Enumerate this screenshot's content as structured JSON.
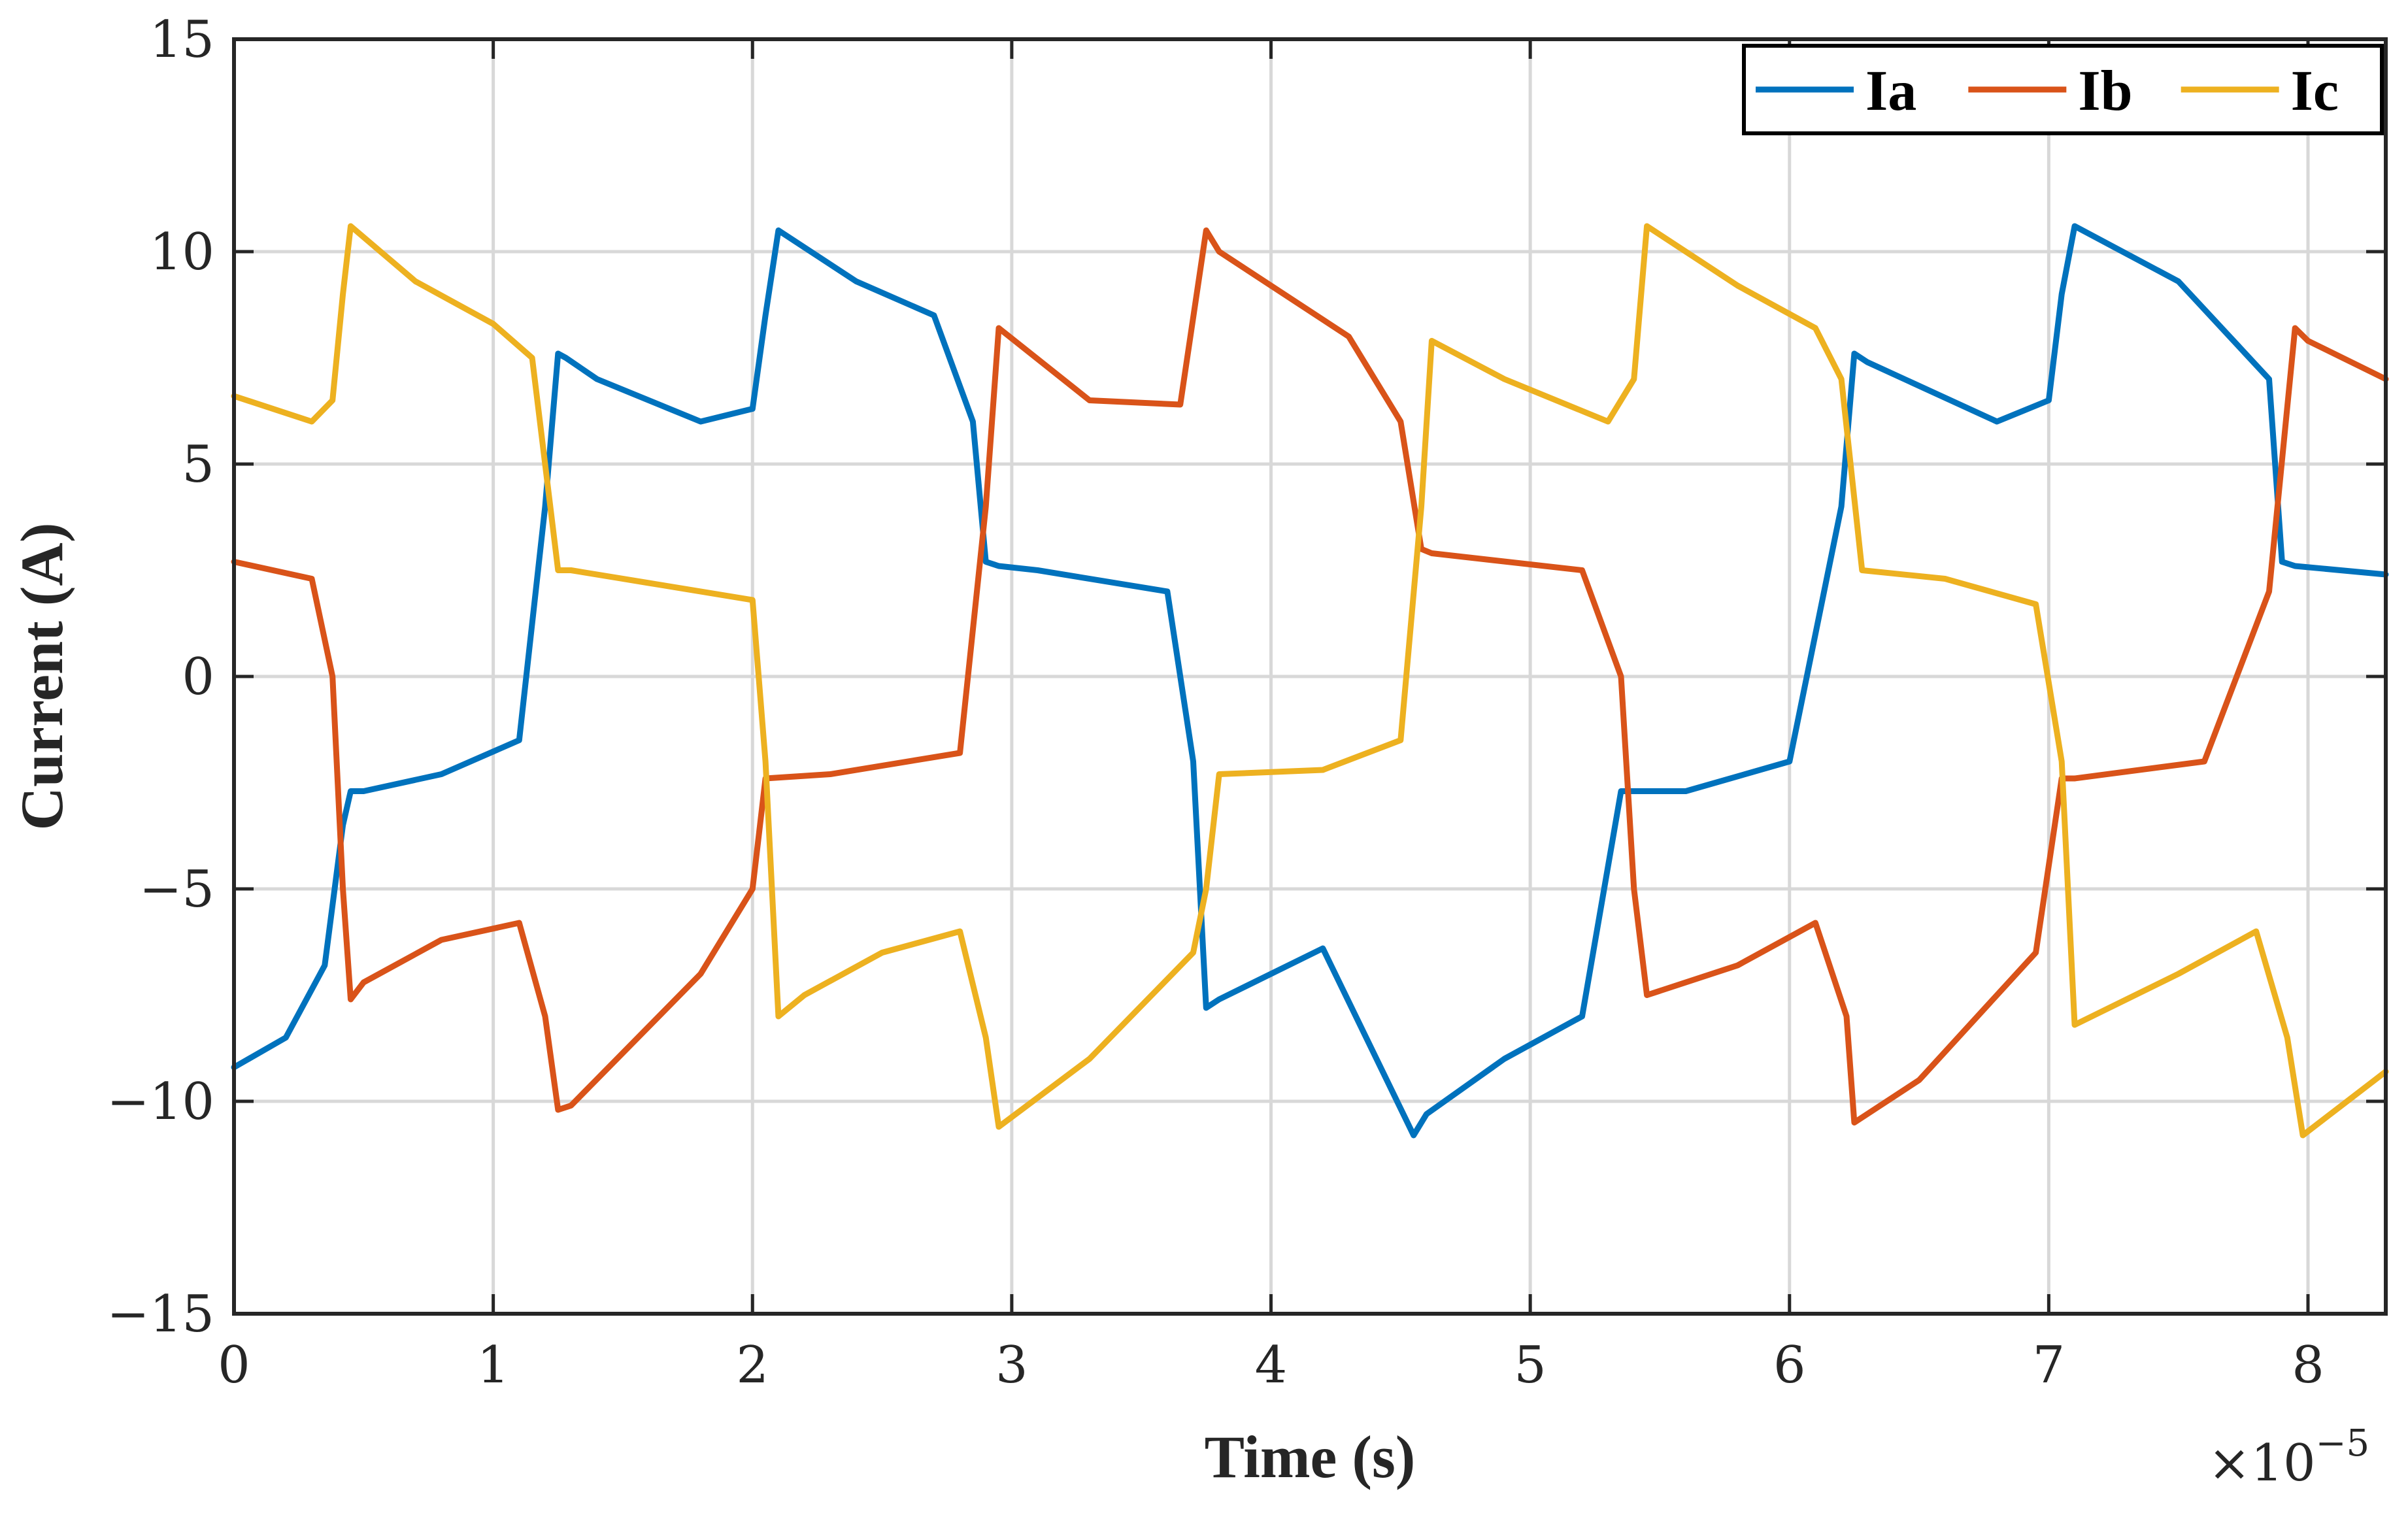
{
  "chart_data": {
    "type": "line",
    "title": "",
    "xlabel": "Time (s)",
    "ylabel": "Current (A)",
    "x_exponent_base": "×10",
    "x_exponent_power": "−5",
    "xlim": [
      0,
      8.3
    ],
    "ylim": [
      -15,
      15
    ],
    "xticks": [
      0,
      1,
      2,
      3,
      4,
      5,
      6,
      7,
      8
    ],
    "xtick_labels": [
      "0",
      "1",
      "2",
      "3",
      "4",
      "5",
      "6",
      "7",
      "8"
    ],
    "yticks": [
      -15,
      -10,
      -5,
      0,
      5,
      10,
      15
    ],
    "ytick_labels": [
      "−15",
      "−10",
      "−5",
      "0",
      "5",
      "10",
      "15"
    ],
    "grid": true,
    "legend_position": "top-right",
    "colors": {
      "Ia": "#0072BD",
      "Ib": "#D95319",
      "Ic": "#EDB120",
      "grid": "#d8d8d8",
      "axes": "#262626"
    },
    "series": [
      {
        "name": "Ia",
        "x": [
          0,
          0.2,
          0.35,
          0.42,
          0.45,
          0.5,
          0.8,
          1.1,
          1.2,
          1.25,
          1.28,
          1.4,
          1.8,
          2.0,
          2.05,
          2.1,
          2.4,
          2.7,
          2.85,
          2.9,
          2.95,
          3.1,
          3.6,
          3.7,
          3.75,
          3.8,
          4.2,
          4.55,
          4.6,
          4.9,
          5.2,
          5.35,
          5.45,
          5.6,
          6.0,
          6.2,
          6.25,
          6.3,
          6.8,
          7.0,
          7.05,
          7.1,
          7.5,
          7.85,
          7.9,
          7.95,
          8.3
        ],
        "values": [
          -9.2,
          -8.5,
          -6.8,
          -3.5,
          -2.7,
          -2.7,
          -2.3,
          -1.5,
          4.0,
          7.6,
          7.5,
          7.0,
          6.0,
          6.3,
          8.5,
          10.5,
          9.3,
          8.5,
          6.0,
          2.7,
          2.6,
          2.5,
          2.0,
          -2.0,
          -7.8,
          -7.6,
          -6.4,
          -10.8,
          -10.3,
          -9.0,
          -8.0,
          -2.7,
          -2.7,
          -2.7,
          -2.0,
          4.0,
          7.6,
          7.4,
          6.0,
          6.5,
          9.0,
          10.6,
          9.3,
          7.0,
          2.7,
          2.6,
          2.4
        ]
      },
      {
        "name": "Ib",
        "x": [
          0,
          0.3,
          0.38,
          0.42,
          0.45,
          0.5,
          0.8,
          1.1,
          1.2,
          1.25,
          1.3,
          1.8,
          2.0,
          2.05,
          2.3,
          2.8,
          2.9,
          2.95,
          3.3,
          3.65,
          3.75,
          3.8,
          4.3,
          4.5,
          4.58,
          4.62,
          5.2,
          5.35,
          5.4,
          5.45,
          5.8,
          6.1,
          6.22,
          6.25,
          6.5,
          6.95,
          7.05,
          7.1,
          7.6,
          7.85,
          7.95,
          8.0,
          8.3
        ],
        "values": [
          2.7,
          2.3,
          0.0,
          -5.0,
          -7.6,
          -7.2,
          -6.2,
          -5.8,
          -8.0,
          -10.2,
          -10.1,
          -7.0,
          -5.0,
          -2.4,
          -2.3,
          -1.8,
          4.0,
          8.2,
          6.5,
          6.4,
          10.5,
          10.0,
          8.0,
          6.0,
          3.0,
          2.9,
          2.5,
          0.0,
          -5.0,
          -7.5,
          -6.8,
          -5.8,
          -8.0,
          -10.5,
          -9.5,
          -6.5,
          -2.4,
          -2.4,
          -2.0,
          2.0,
          8.2,
          7.9,
          7.0
        ]
      },
      {
        "name": "Ic",
        "x": [
          0,
          0.3,
          0.38,
          0.42,
          0.45,
          0.7,
          1.0,
          1.15,
          1.25,
          1.3,
          1.6,
          2.0,
          2.05,
          2.1,
          2.2,
          2.5,
          2.8,
          2.9,
          2.95,
          3.3,
          3.7,
          3.75,
          3.8,
          4.2,
          4.5,
          4.58,
          4.62,
          4.9,
          5.3,
          5.4,
          5.45,
          5.8,
          6.1,
          6.2,
          6.28,
          6.6,
          6.95,
          7.05,
          7.1,
          7.5,
          7.8,
          7.92,
          7.98,
          8.3
        ],
        "values": [
          6.6,
          6.0,
          6.5,
          9.0,
          10.6,
          9.3,
          8.3,
          7.5,
          2.5,
          2.5,
          2.2,
          1.8,
          -2.0,
          -8.0,
          -7.5,
          -6.5,
          -6.0,
          -8.5,
          -10.6,
          -9.0,
          -6.5,
          -5.0,
          -2.3,
          -2.2,
          -1.5,
          4.0,
          7.9,
          7.0,
          6.0,
          7.0,
          10.6,
          9.2,
          8.2,
          7.0,
          2.5,
          2.3,
          1.7,
          -2.0,
          -8.2,
          -7.0,
          -6.0,
          -8.5,
          -10.8,
          -9.3
        ]
      }
    ]
  }
}
